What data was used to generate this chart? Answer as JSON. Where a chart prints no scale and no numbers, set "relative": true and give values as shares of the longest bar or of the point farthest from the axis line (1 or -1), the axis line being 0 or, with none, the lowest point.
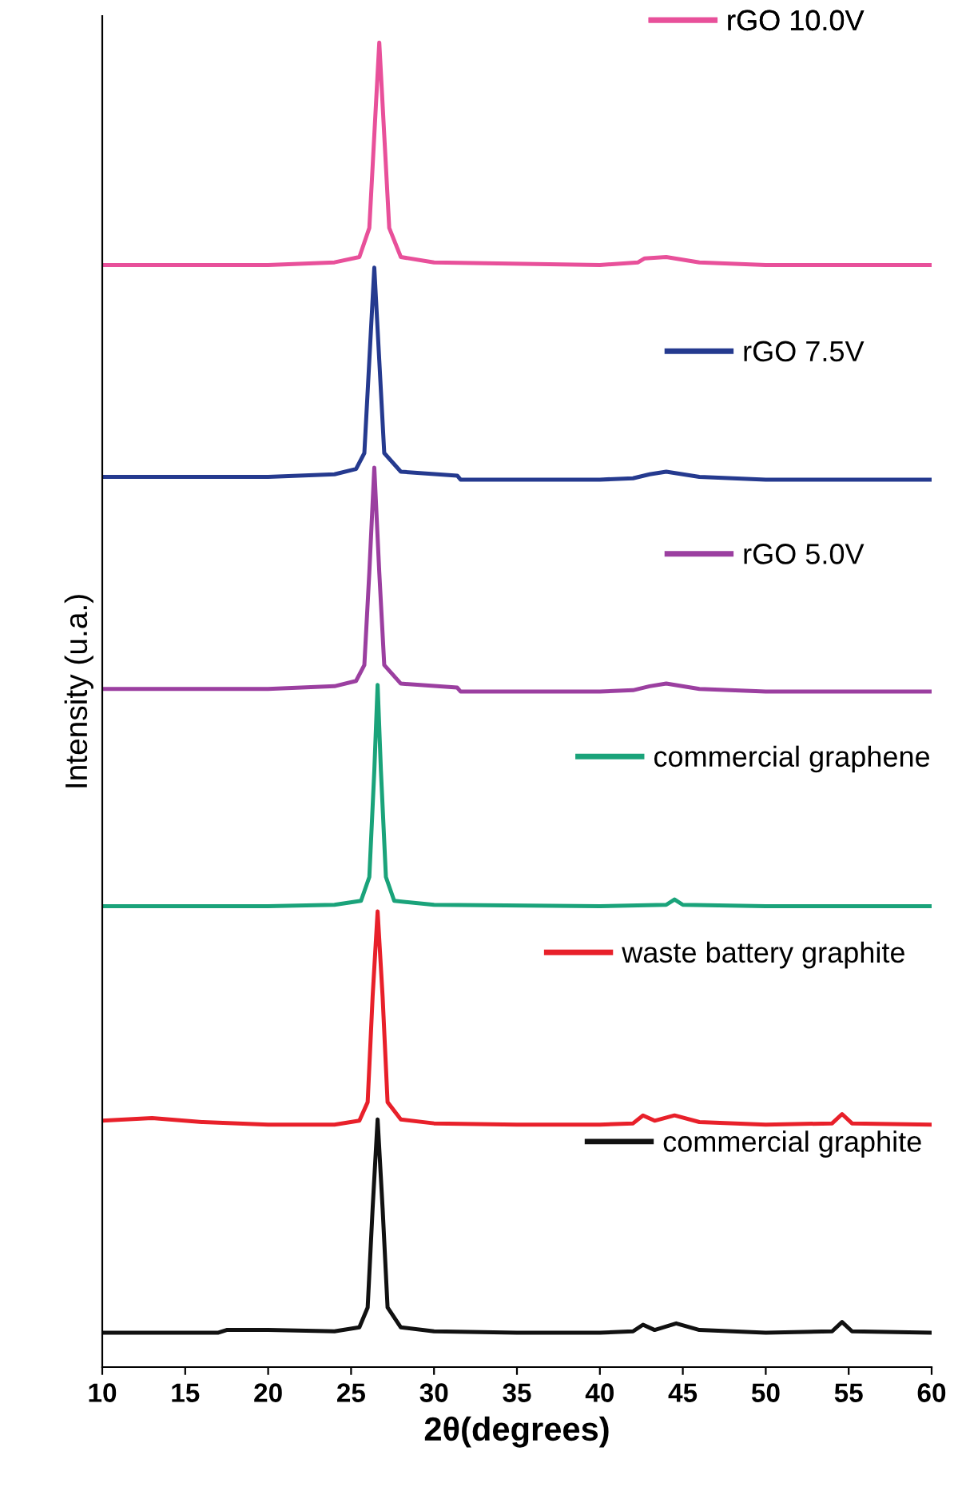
{
  "chart_data": {
    "type": "line",
    "relative": true,
    "xlabel": "2θ(degrees)",
    "ylabel": "Intensity (u.a.)",
    "xlim": [
      10,
      60
    ],
    "xticks": [
      10,
      15,
      20,
      25,
      30,
      35,
      40,
      45,
      50,
      55,
      60
    ],
    "tick_labels": "x",
    "grid": false,
    "legend": "right",
    "marker": "none",
    "line_style": "solid",
    "series": [
      {
        "name": "commercial graphite",
        "color": "#111111",
        "x": [
          10,
          17,
          17.5,
          20,
          24,
          25.5,
          26.0,
          26.3,
          26.6,
          26.9,
          27.2,
          28,
          30,
          35,
          40,
          42,
          42.6,
          43.3,
          44.6,
          46,
          50,
          54,
          54.6,
          55.2,
          60
        ],
        "values": [
          0.026,
          0.026,
          0.028,
          0.028,
          0.027,
          0.03,
          0.045,
          0.12,
          0.187,
          0.12,
          0.045,
          0.03,
          0.027,
          0.026,
          0.026,
          0.027,
          0.032,
          0.028,
          0.033,
          0.028,
          0.026,
          0.027,
          0.034,
          0.027,
          0.026
        ]
      },
      {
        "name": "waste battery graphite",
        "color": "#e8202a",
        "x": [
          10,
          13,
          16,
          20,
          24,
          25.5,
          26.0,
          26.3,
          26.6,
          26.9,
          27.2,
          28,
          30,
          35,
          40,
          42,
          42.6,
          43.3,
          44.5,
          46,
          50,
          54,
          54.6,
          55.2,
          60
        ],
        "values": [
          0.186,
          0.188,
          0.185,
          0.183,
          0.183,
          0.186,
          0.2,
          0.28,
          0.344,
          0.28,
          0.2,
          0.187,
          0.184,
          0.183,
          0.183,
          0.184,
          0.19,
          0.186,
          0.19,
          0.185,
          0.183,
          0.184,
          0.191,
          0.184,
          0.183
        ]
      },
      {
        "name": "commercial graphene",
        "color": "#1aa37a",
        "x": [
          10,
          20,
          24,
          25.6,
          26.1,
          26.4,
          26.6,
          26.8,
          27.1,
          27.6,
          30,
          40,
          44,
          44.5,
          45,
          50,
          60
        ],
        "values": [
          0.348,
          0.348,
          0.349,
          0.352,
          0.37,
          0.45,
          0.515,
          0.45,
          0.37,
          0.352,
          0.349,
          0.348,
          0.349,
          0.353,
          0.349,
          0.348,
          0.348
        ]
      },
      {
        "name": "rGO 5.0V",
        "color": "#9b3fa0",
        "x": [
          10,
          20,
          24,
          25.3,
          25.8,
          26.1,
          26.4,
          26.7,
          27.0,
          28,
          31.4,
          31.6,
          40,
          42,
          43,
          44,
          46,
          50,
          60
        ],
        "values": [
          0.512,
          0.512,
          0.514,
          0.518,
          0.53,
          0.6,
          0.679,
          0.6,
          0.53,
          0.516,
          0.513,
          0.51,
          0.51,
          0.511,
          0.514,
          0.516,
          0.512,
          0.51,
          0.51
        ]
      },
      {
        "name": "rGO 7.5V",
        "color": "#253a8f",
        "x": [
          10,
          20,
          24,
          25.3,
          25.8,
          26.1,
          26.4,
          26.7,
          27.0,
          28,
          31.4,
          31.6,
          40,
          42,
          43,
          44,
          46,
          50,
          60
        ],
        "values": [
          0.672,
          0.672,
          0.674,
          0.678,
          0.69,
          0.76,
          0.83,
          0.76,
          0.69,
          0.676,
          0.673,
          0.67,
          0.67,
          0.671,
          0.674,
          0.676,
          0.672,
          0.67,
          0.67
        ]
      },
      {
        "name": "rGO 10.0V",
        "color": "#e8509a",
        "x": [
          10,
          20,
          24,
          25.5,
          26.1,
          26.4,
          26.7,
          27.0,
          27.3,
          28,
          30,
          40,
          42.3,
          42.7,
          44,
          46,
          50,
          60
        ],
        "values": [
          0.832,
          0.832,
          0.834,
          0.838,
          0.86,
          0.93,
          1.0,
          0.93,
          0.86,
          0.838,
          0.834,
          0.832,
          0.834,
          0.837,
          0.838,
          0.834,
          0.832,
          0.832
        ]
      }
    ]
  }
}
